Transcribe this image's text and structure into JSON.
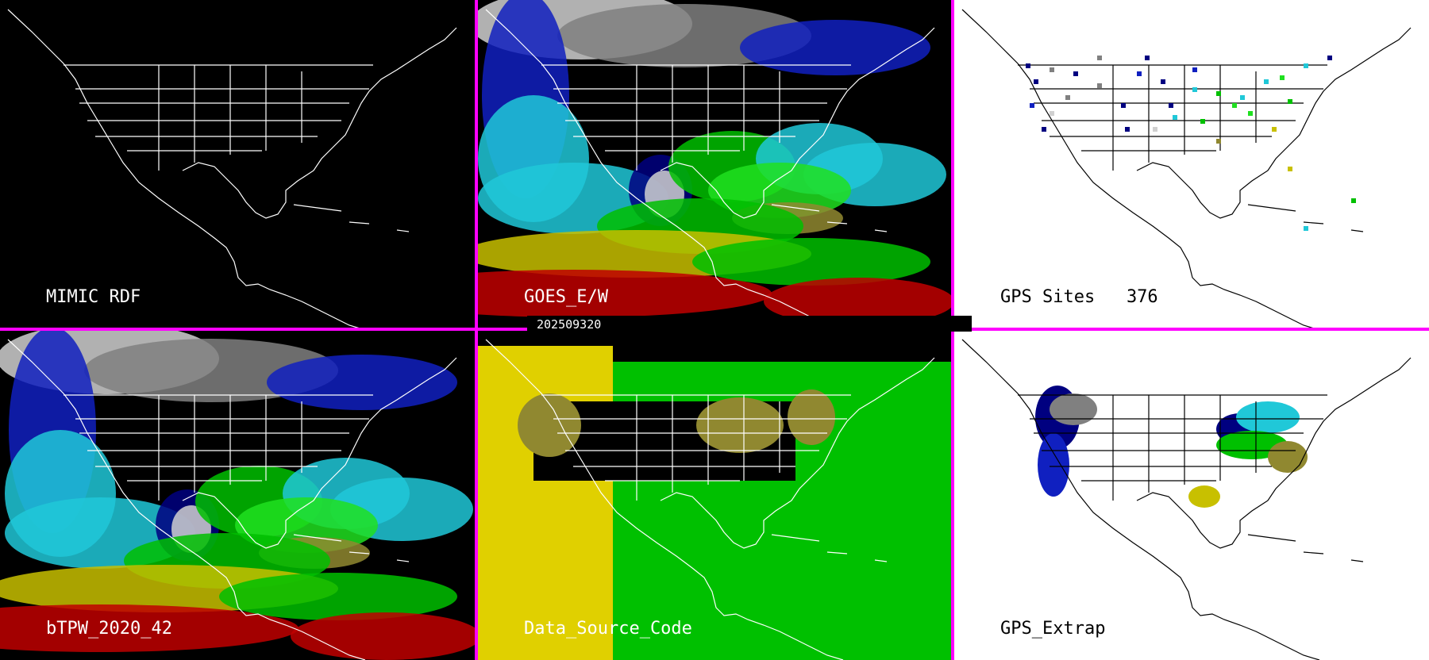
{
  "colors": {
    "divider": "#ff00ff",
    "map_dark_bg": "#000000",
    "map_light_bg": "#ffffff",
    "borders_on_dark": "#ffffff",
    "borders_on_light": "#000000",
    "tpw_scale": [
      "#000080",
      "#1020c0",
      "#20c8d8",
      "#00b0b0",
      "#00c000",
      "#20e020",
      "#908830",
      "#c8c000",
      "#e0d000",
      "#c00000",
      "#808080",
      "#d0d0d0"
    ]
  },
  "timestamp": "202509320",
  "panels": [
    {
      "id": "mimic-rdf",
      "label": "MIMIC RDF",
      "style": "dark-outline"
    },
    {
      "id": "goes-ew",
      "label": "GOES_E/W",
      "style": "dark-tpw"
    },
    {
      "id": "gps-sites",
      "label": "GPS Sites   376",
      "style": "light-sites"
    },
    {
      "id": "btpw",
      "label": "bTPW_2020_42",
      "style": "dark-tpw"
    },
    {
      "id": "data-source-code",
      "label": "Data_Source_Code",
      "style": "dark-source"
    },
    {
      "id": "gps-extrap",
      "label": "GPS_Extrap",
      "style": "light-extrap"
    }
  ]
}
